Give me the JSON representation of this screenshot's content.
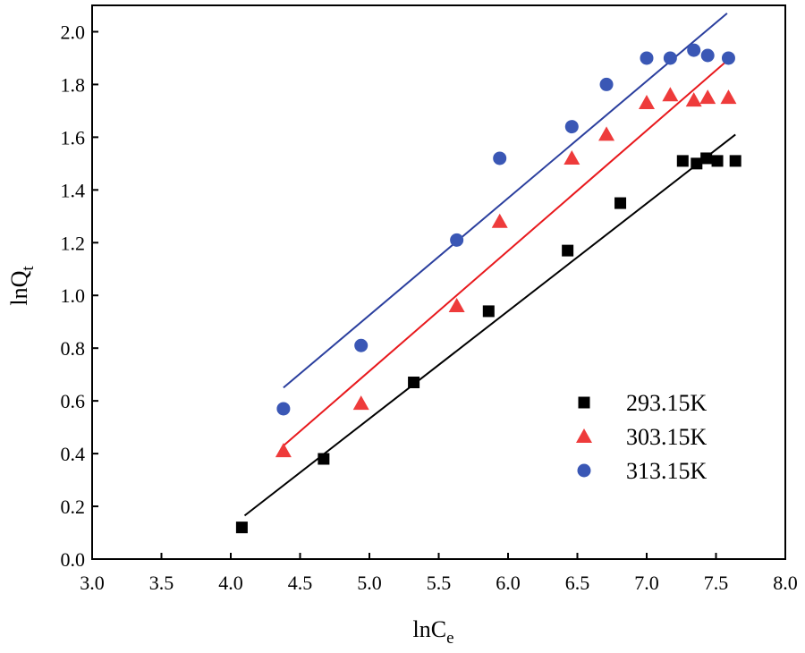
{
  "chart_data": {
    "type": "scatter",
    "title": "",
    "xlabel": {
      "main": "lnC",
      "sub": "e"
    },
    "ylabel": {
      "main": "lnQ",
      "sub": "t"
    },
    "xlim": [
      3.0,
      8.0
    ],
    "ylim": [
      0.0,
      2.1
    ],
    "xticks": [
      3.0,
      3.5,
      4.0,
      4.5,
      5.0,
      5.5,
      6.0,
      6.5,
      7.0,
      7.5,
      8.0
    ],
    "xtick_labels": [
      "3.0",
      "3.5",
      "4.0",
      "4.5",
      "5.0",
      "5.5",
      "6.0",
      "6.5",
      "7.0",
      "7.5",
      "8.0"
    ],
    "yticks": [
      0.0,
      0.2,
      0.4,
      0.6,
      0.8,
      1.0,
      1.2,
      1.4,
      1.6,
      1.8,
      2.0
    ],
    "ytick_labels": [
      "0.0",
      "0.2",
      "0.4",
      "0.6",
      "0.8",
      "1.0",
      "1.2",
      "1.4",
      "1.6",
      "1.8",
      "2.0"
    ],
    "grid": false,
    "legend_position": "lower-right",
    "series": [
      {
        "name": "293.15K",
        "marker": "square",
        "color": "#000000",
        "line_color": "#000000",
        "x": [
          4.08,
          4.67,
          5.32,
          5.86,
          6.43,
          6.81,
          7.26,
          7.36,
          7.43,
          7.51,
          7.64
        ],
        "y": [
          0.12,
          0.38,
          0.67,
          0.94,
          1.17,
          1.35,
          1.51,
          1.5,
          1.52,
          1.51,
          1.51
        ],
        "fit": {
          "x": [
            4.1,
            7.64
          ],
          "y": [
            0.165,
            1.61
          ]
        }
      },
      {
        "name": "303.15K",
        "marker": "triangle",
        "color": "#ee3b3b",
        "line_color": "#e8191d",
        "x": [
          4.38,
          4.94,
          5.63,
          5.94,
          6.46,
          6.71,
          7.0,
          7.17,
          7.34,
          7.44,
          7.59
        ],
        "y": [
          0.41,
          0.59,
          0.96,
          1.28,
          1.52,
          1.61,
          1.73,
          1.76,
          1.74,
          1.75,
          1.75
        ],
        "fit": {
          "x": [
            4.38,
            7.58
          ],
          "y": [
            0.43,
            1.89
          ]
        }
      },
      {
        "name": "313.15K",
        "marker": "circle",
        "color": "#3a57b5",
        "line_color": "#2b3f9e",
        "x": [
          4.38,
          4.94,
          5.63,
          5.94,
          6.46,
          6.71,
          7.0,
          7.17,
          7.34,
          7.44,
          7.59
        ],
        "y": [
          0.57,
          0.81,
          1.21,
          1.52,
          1.64,
          1.8,
          1.9,
          1.9,
          1.93,
          1.91,
          1.9
        ],
        "fit": {
          "x": [
            4.38,
            7.58
          ],
          "y": [
            0.65,
            2.07
          ]
        }
      }
    ]
  }
}
